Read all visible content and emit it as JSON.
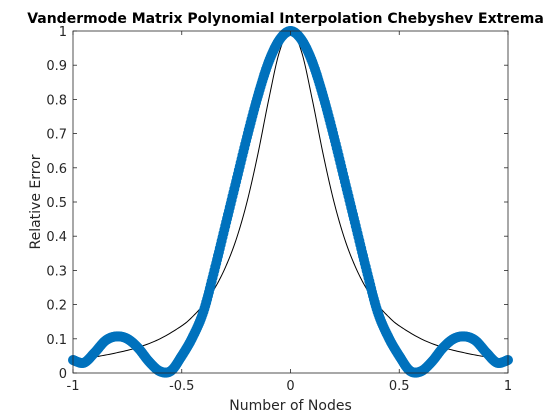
{
  "chart_data": {
    "type": "line",
    "title": "Vandermode Matrix Polynomial Interpolation Chebyshev Extrema",
    "xlabel": "Number of Nodes",
    "ylabel": "Relative Error",
    "xlim": [
      -1,
      1
    ],
    "ylim": [
      0,
      1
    ],
    "xticks": [
      -1,
      -0.5,
      0,
      0.5,
      1
    ],
    "xtick_labels": [
      "-1",
      "-0.5",
      "0",
      "0.5",
      "1"
    ],
    "yticks": [
      0,
      0.1,
      0.2,
      0.3,
      0.4,
      0.5,
      0.6,
      0.7,
      0.8,
      0.9,
      1
    ],
    "ytick_labels": [
      "0",
      "0.1",
      "0.2",
      "0.3",
      "0.4",
      "0.5",
      "0.6",
      "0.7",
      "0.8",
      "0.9",
      "1"
    ],
    "grid": false,
    "legend": "none",
    "series": [
      {
        "style": "thin-solid-line",
        "color": "#000000",
        "x": [
          -1,
          -0.9,
          -0.8,
          -0.7,
          -0.6,
          -0.5,
          -0.45,
          -0.4,
          -0.35,
          -0.3,
          -0.25,
          -0.2,
          -0.15,
          -0.1,
          -0.05,
          0,
          0.05,
          0.1,
          0.15,
          0.2,
          0.25,
          0.3,
          0.35,
          0.4,
          0.45,
          0.5,
          0.6,
          0.7,
          0.8,
          0.9,
          1
        ],
        "y": [
          0.038,
          0.047,
          0.059,
          0.075,
          0.1,
          0.138,
          0.165,
          0.2,
          0.246,
          0.308,
          0.39,
          0.5,
          0.64,
          0.8,
          0.941,
          1,
          0.941,
          0.8,
          0.64,
          0.5,
          0.39,
          0.308,
          0.246,
          0.2,
          0.165,
          0.138,
          0.1,
          0.075,
          0.059,
          0.047,
          0.038
        ]
      },
      {
        "style": "thick-marker-line",
        "color": "#0072BD",
        "x": [
          -1,
          -0.95,
          -0.9,
          -0.85,
          -0.8,
          -0.75,
          -0.7,
          -0.65,
          -0.6,
          -0.55,
          -0.5,
          -0.45,
          -0.4,
          -0.35,
          -0.3,
          -0.25,
          -0.2,
          -0.15,
          -0.1,
          -0.05,
          0,
          0.05,
          0.1,
          0.15,
          0.2,
          0.25,
          0.3,
          0.35,
          0.4,
          0.45,
          0.5,
          0.55,
          0.6,
          0.65,
          0.7,
          0.75,
          0.8,
          0.85,
          0.9,
          0.95,
          1
        ],
        "y": [
          0.038,
          0.03,
          0.06,
          0.095,
          0.107,
          0.1,
          0.073,
          0.033,
          0.005,
          0.006,
          0.05,
          0.105,
          0.18,
          0.3,
          0.43,
          0.56,
          0.69,
          0.81,
          0.91,
          0.975,
          1,
          0.975,
          0.91,
          0.81,
          0.69,
          0.56,
          0.43,
          0.3,
          0.18,
          0.105,
          0.05,
          0.006,
          0.005,
          0.033,
          0.073,
          0.1,
          0.107,
          0.095,
          0.06,
          0.03,
          0.038
        ]
      }
    ]
  }
}
